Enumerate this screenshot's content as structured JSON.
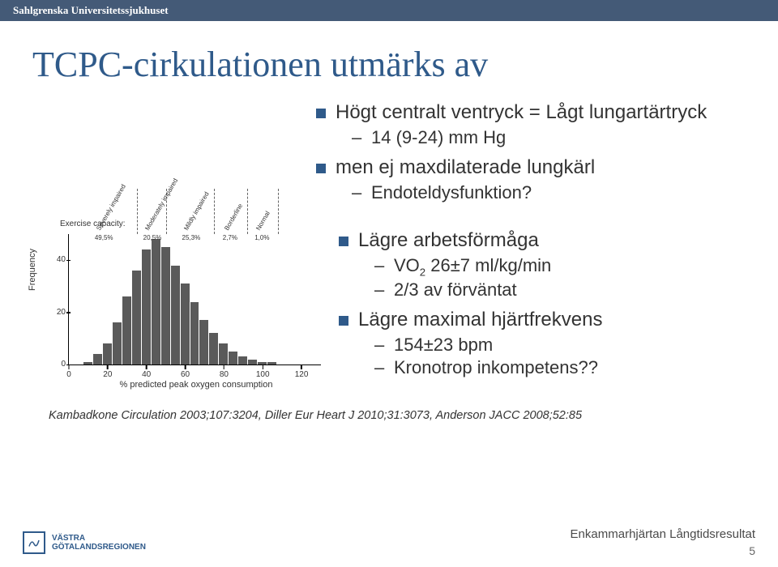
{
  "header": {
    "org": "Sahlgrenska Universitetssjukhuset"
  },
  "title": "TCPC-cirkulationen utmärks av",
  "bullets_top": [
    {
      "text": "Högt centralt ventryck = Lågt lungartärtryck",
      "sub": [
        "14 (9-24) mm Hg"
      ]
    },
    {
      "text": "men ej maxdilaterade lungkärl",
      "sub": [
        "Endoteldysfunktion?"
      ]
    }
  ],
  "bullets_bottom": [
    {
      "text": "Lägre arbetsförmåga",
      "sub": [
        "VO₂ 26±7 ml/kg/min",
        "2/3 av förväntat"
      ]
    },
    {
      "text": "Lägre maximal hjärtfrekvens",
      "sub": [
        "154±23 bpm",
        "Kronotrop inkompetens??"
      ]
    }
  ],
  "citation": "Kambadkone Circulation 2003;107:3204, Diller Eur Heart J 2010;31:3073, Anderson JACC 2008;52:85",
  "footer": {
    "text": "Enkammarhjärtan Långtidsresultat",
    "page": "5",
    "logo_lines": [
      "VÄSTRA",
      "GÖTALANDSREGIONEN"
    ]
  },
  "chart": {
    "type": "histogram",
    "ylabel": "Frequency",
    "xlabel": "% predicted peak oxygen consumption",
    "ec_label": "Exercise capacity:",
    "xlim": [
      0,
      130
    ],
    "ylim": [
      0,
      50
    ],
    "yticks": [
      0,
      20,
      40
    ],
    "xticks": [
      0,
      20,
      40,
      60,
      80,
      100,
      120
    ],
    "bar_color": "#5a5a5a",
    "bg": "#ffffff",
    "axis_color": "#000000",
    "dash_color": "#666666",
    "font_size_axis": 10,
    "label_fontsize": 11,
    "bar_width_units": 5,
    "bins": [
      5,
      10,
      15,
      20,
      25,
      30,
      35,
      40,
      45,
      50,
      55,
      60,
      65,
      70,
      75,
      80,
      85,
      90,
      95,
      100,
      105,
      110,
      115,
      120,
      125
    ],
    "freqs": [
      0,
      1,
      4,
      8,
      16,
      26,
      36,
      44,
      48,
      45,
      38,
      31,
      24,
      17,
      12,
      8,
      5,
      3,
      2,
      1,
      1,
      0,
      0,
      0,
      0
    ],
    "categories": [
      {
        "label": "Severely impaired",
        "pct": "49,5%",
        "cut": 35
      },
      {
        "label": "Moderately impaired",
        "pct": "20,5%",
        "cut": 50
      },
      {
        "label": "Mildly impaired",
        "pct": "25,3%",
        "cut": 75
      },
      {
        "label": "Borderline",
        "pct": "2,7%",
        "cut": 92
      },
      {
        "label": "Normal",
        "pct": "1,0%",
        "cut": 108
      }
    ]
  }
}
